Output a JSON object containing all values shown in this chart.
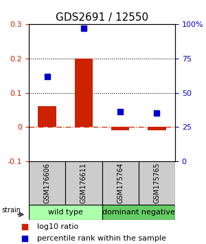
{
  "title": "GDS2691 / 12550",
  "samples": [
    "GSM176606",
    "GSM176611",
    "GSM175764",
    "GSM175765"
  ],
  "log10_ratio": [
    0.06,
    0.2,
    -0.01,
    -0.01
  ],
  "percentile_rank": [
    0.62,
    0.97,
    0.36,
    0.35
  ],
  "groups": [
    {
      "label": "wild type",
      "indices": [
        0,
        1
      ],
      "color": "#aaffaa"
    },
    {
      "label": "dominant negative",
      "indices": [
        2,
        3
      ],
      "color": "#66cc66"
    }
  ],
  "ylim_left": [
    -0.1,
    0.3
  ],
  "ylim_right": [
    0.0,
    1.0
  ],
  "yticks_left": [
    -0.1,
    0.0,
    0.1,
    0.2,
    0.3
  ],
  "ytick_labels_left": [
    "-0.1",
    "0",
    "0.1",
    "0.2",
    "0.3"
  ],
  "yticks_right": [
    0.0,
    0.25,
    0.5,
    0.75,
    1.0
  ],
  "ytick_labels_right": [
    "0",
    "25",
    "50",
    "75",
    "100%"
  ],
  "hlines": [
    0.1,
    0.2
  ],
  "bar_color": "#cc2200",
  "scatter_color": "#0000cc",
  "zero_line_color": "#cc2200",
  "sample_box_color": "#cccccc",
  "legend_bar_label": "log10 ratio",
  "legend_scatter_label": "percentile rank within the sample",
  "strain_label": "strain",
  "bar_width": 0.5
}
